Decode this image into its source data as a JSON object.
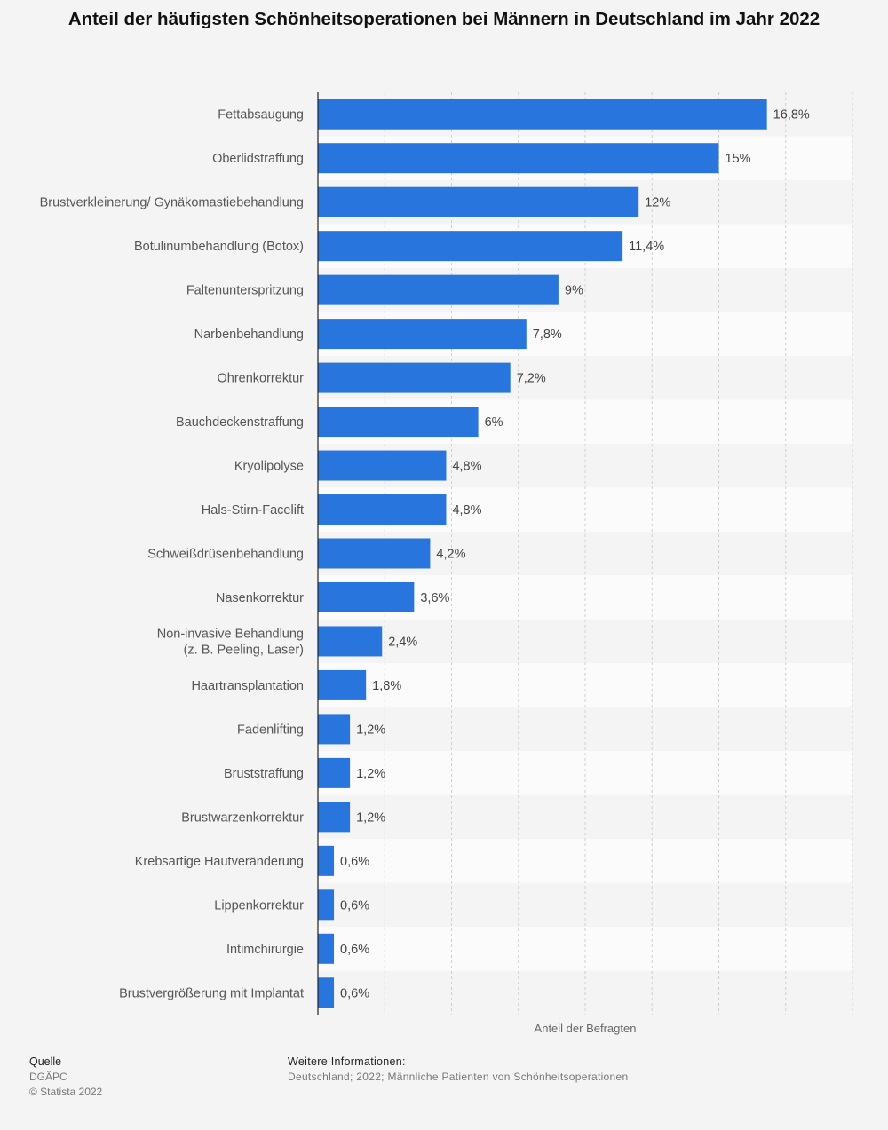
{
  "title": "Anteil der häufigsten Schönheitsoperationen bei Männern in Deutschland im Jahr 2022",
  "chart_data": {
    "type": "bar",
    "orientation": "horizontal",
    "categories": [
      "Fettabsaugung",
      "Oberlidstraffung",
      "Brustverkleinerung/ Gynäkomastiebehandlung",
      "Botulinumbehandlung (Botox)",
      "Faltenunterspritzung",
      "Narbenbehandlung",
      "Ohrenkorrektur",
      "Bauchdeckenstraffung",
      "Kryolipolyse",
      "Hals-Stirn-Facelift",
      "Schweißdrüsenbehandlung",
      "Nasenkorrektur",
      "Non-invasive Behandlung\n(z. B. Peeling, Laser)",
      "Haartransplantation",
      "Fadenlifting",
      "Bruststraffung",
      "Brustwarzenkorrektur",
      "Krebsartige Hautveränderung",
      "Lippenkorrektur",
      "Intimchirurgie",
      "Brustvergrößerung mit Implantat"
    ],
    "values": [
      16.8,
      15,
      12,
      11.4,
      9,
      7.8,
      7.2,
      6,
      4.8,
      4.8,
      4.2,
      3.6,
      2.4,
      1.8,
      1.2,
      1.2,
      1.2,
      0.6,
      0.6,
      0.6,
      0.6
    ],
    "value_labels": [
      "16,8%",
      "15%",
      "12%",
      "11,4%",
      "9%",
      "7,8%",
      "7,2%",
      "6%",
      "4,8%",
      "4,8%",
      "4,2%",
      "3,6%",
      "2,4%",
      "1,8%",
      "1,2%",
      "1,2%",
      "1,2%",
      "0,6%",
      "0,6%",
      "0,6%",
      "0,6%"
    ],
    "xlabel": "Anteil der Befragten",
    "ylabel": "",
    "xlim": [
      0,
      20
    ],
    "grid": true,
    "bar_color": "#2876dd"
  },
  "footer": {
    "source_heading": "Quelle",
    "source_name": "DGÄPC",
    "copyright": "© Statista 2022",
    "info_heading": "Weitere Informationen:",
    "info_text": "Deutschland; 2022; Männliche Patienten von Schönheitsoperationen"
  }
}
